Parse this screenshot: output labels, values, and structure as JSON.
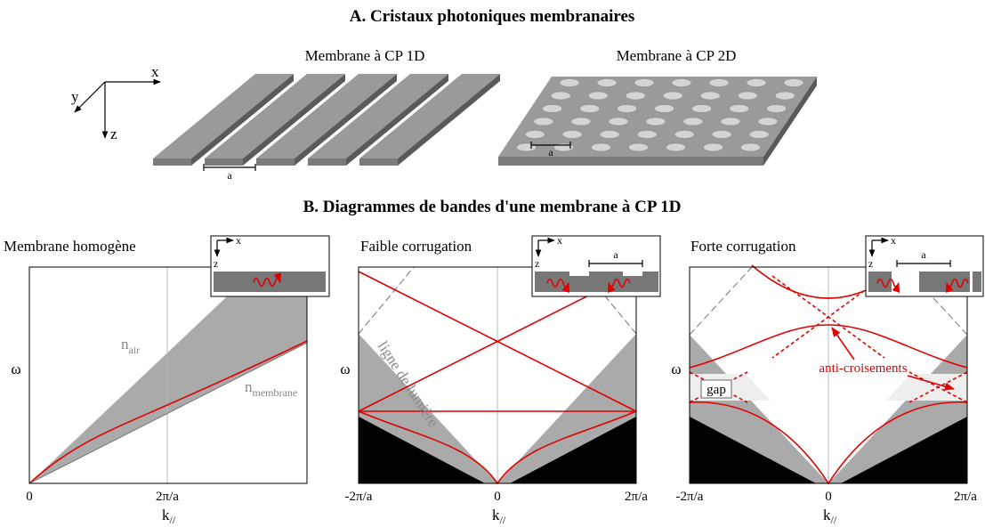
{
  "section_a": {
    "title": "A. Cristaux photoniques membranaires",
    "axes": {
      "x": "x",
      "y": "y",
      "z": "z"
    },
    "diagrams": [
      {
        "label": "Membrane à CP 1D",
        "period_label": "a"
      },
      {
        "label": "Membrane à CP 2D",
        "period_label": "a"
      }
    ]
  },
  "section_b": {
    "title": "B. Diagrammes de bandes d'une membrane à CP 1D",
    "panels": [
      {
        "title": "Membrane homogène",
        "y_label": "ω",
        "x_label": {
          "base": "k",
          "sub": "//"
        },
        "x_ticks": [
          "0",
          "2π/a"
        ],
        "inset": {
          "x": "x",
          "z": "z"
        },
        "annotations": [
          {
            "base": "n",
            "sub": "air"
          },
          {
            "base": "n",
            "sub": "membrane"
          }
        ]
      },
      {
        "title": "Faible corrugation",
        "y_label": "ω",
        "x_label": {
          "base": "k",
          "sub": "//"
        },
        "x_ticks": [
          "-2π/a",
          "0",
          "2π/a"
        ],
        "inset": {
          "x": "x",
          "z": "z",
          "period_label": "a"
        },
        "annotations": [
          "ligne de lumière"
        ]
      },
      {
        "title": "Forte corrugation",
        "y_label": "ω",
        "x_label": {
          "base": "k",
          "sub": "//"
        },
        "x_ticks": [
          "-2π/a",
          "0",
          "2π/a"
        ],
        "inset": {
          "x": "x",
          "z": "z",
          "period_label": "a"
        },
        "annotations": [
          "anti-croisements",
          "gap"
        ]
      }
    ]
  }
}
